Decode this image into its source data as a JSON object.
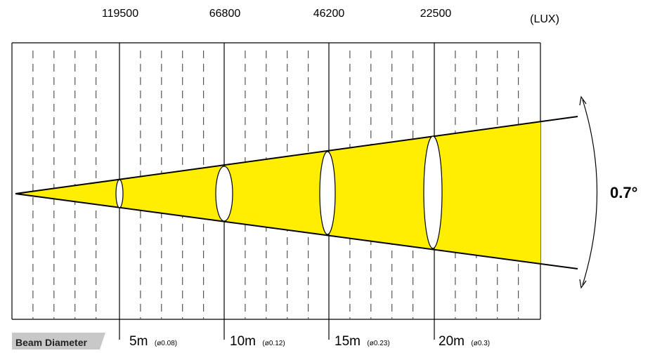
{
  "unit_label": "(LUX)",
  "angle_label": "0.7°",
  "legend_label": "Beam Diameter",
  "colors": {
    "beam": "#ffee00",
    "line": "#000000",
    "legend_bg": "#c8c8c8",
    "dash": "#555555"
  },
  "stations": [
    {
      "lux": "119500",
      "distance": "5m",
      "diameter": "(ø0.08)"
    },
    {
      "lux": "66800",
      "distance": "10m",
      "diameter": "(ø0.12)"
    },
    {
      "lux": "46200",
      "distance": "15m",
      "diameter": "(ø0.23)"
    },
    {
      "lux": "22500",
      "distance": "20m",
      "diameter": "(ø0.3)"
    }
  ]
}
